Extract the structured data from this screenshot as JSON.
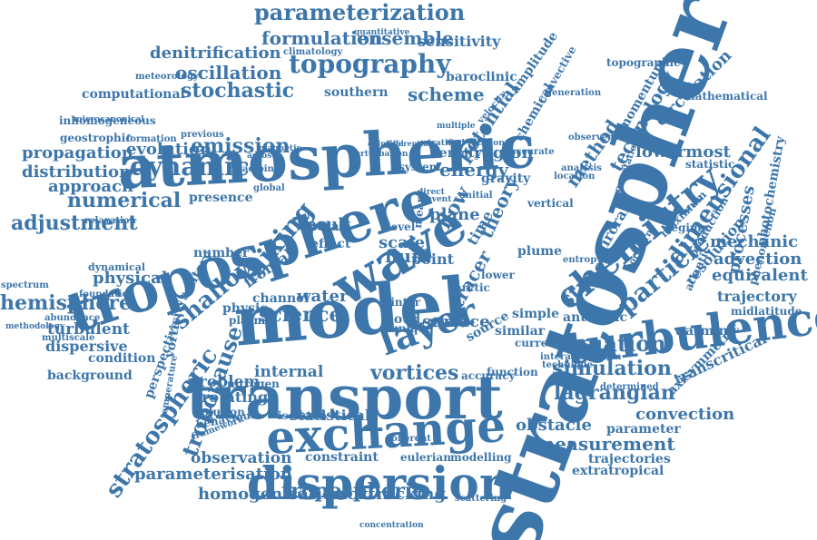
{
  "cloud": {
    "color": "#3d76aa",
    "words": [
      "stratosphere",
      "model",
      "transport",
      "atmospheric",
      "troposphere",
      "wave",
      "turbulence",
      "exchange",
      "dispersion",
      "layer",
      "chemistry",
      "shallow",
      "mixing",
      "tropopause",
      "stratospheric",
      "tropospheric",
      "parameterization",
      "formulation",
      "ensemble",
      "sensitivity",
      "topography",
      "denitrification",
      "oscillation",
      "stochastic",
      "dynamic",
      "emission",
      "evolution",
      "propagation",
      "distribution",
      "numerical",
      "approach",
      "adjustment",
      "hemisphere",
      "spectrum",
      "physical",
      "turbulent",
      "dispersive",
      "background",
      "condition",
      "science",
      "water",
      "simulation",
      "equation",
      "lagrangian",
      "convection",
      "measurement",
      "obstacle",
      "trajectories",
      "extratropical",
      "homogenisation",
      "backtracking",
      "parameterisation",
      "observation",
      "constraint",
      "statistical",
      "isolated",
      "rotating",
      "problem",
      "internal",
      "vortices",
      "plasma",
      "physic",
      "channel",
      "frontal",
      "nitrogen",
      "solution",
      "behaviour",
      "framework",
      "particle",
      "structure",
      "dimensional",
      "method",
      "technology",
      "potential",
      "chemical",
      "energy",
      "fluid",
      "region",
      "scheme",
      "southern",
      "computational",
      "meteorology",
      "inhomogeneous",
      "geostrophic",
      "microcanonical",
      "formation",
      "previous",
      "mechanic",
      "advection",
      "equivalent",
      "trajectory",
      "midlatitude",
      "warming",
      "transcritical",
      "axisymmetric",
      "antarctic",
      "lowermost",
      "circulation",
      "momentum",
      "topographic",
      "production",
      "regime",
      "surface",
      "tracer",
      "cloud",
      "plane",
      "result",
      "scale",
      "point",
      "flow",
      "theory",
      "time",
      "effect",
      "gravity",
      "density",
      "accuracy",
      "function",
      "source",
      "similar",
      "simple",
      "current",
      "interaction",
      "airstream",
      "technique",
      "determined",
      "parameter",
      "eulerian",
      "modelling",
      "coherent",
      "scattering",
      "concentration",
      "amplitude",
      "convective",
      "generation",
      "climatology",
      "quantitative",
      "baroclinic",
      "mathematical",
      "processes",
      "photochemistry",
      "phenomenon",
      "resolution",
      "aircraft",
      "atlantic",
      "maximum",
      "statistic",
      "analysis",
      "observed",
      "gravitational",
      "accurate",
      "velocity",
      "multiscale",
      "abundance",
      "methodology",
      "foundation",
      "relaxation",
      "dynamical",
      "presence",
      "adjoint",
      "aerosol",
      "number",
      "solitary",
      "perspective",
      "vorticity",
      "temperature",
      "unique",
      "winter",
      "arctic",
      "lower",
      "plume",
      "entropy",
      "northern",
      "location",
      "vertical",
      "initial",
      "polar",
      "global",
      "multiple",
      "stratified",
      "elliptical",
      "differential",
      "rotational",
      "perturbation",
      "magnetic",
      "system",
      "direct",
      "mean",
      "level",
      "event"
    ]
  }
}
